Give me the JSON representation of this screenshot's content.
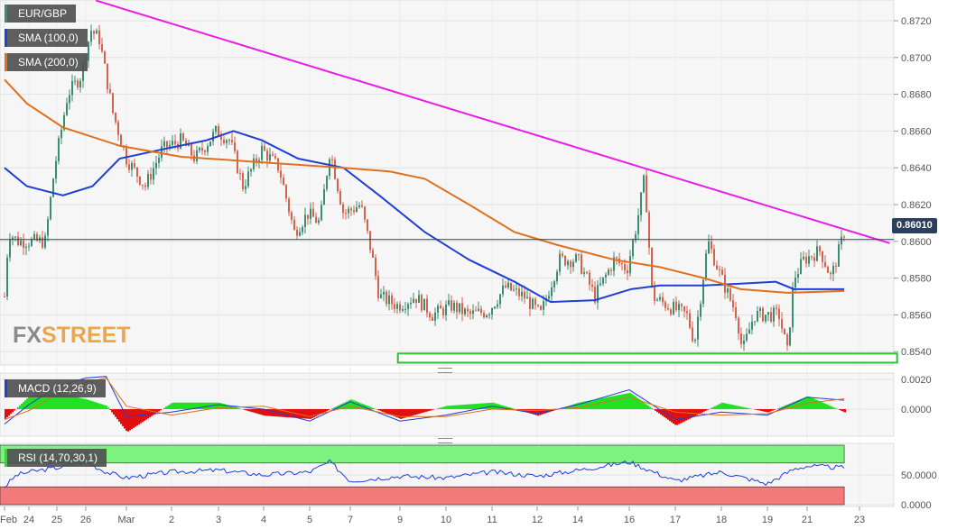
{
  "chart_data": [
    {
      "type": "candlestick",
      "symbol": "EUR/GBP",
      "ylim": [
        0.8531,
        0.8731
      ],
      "yticks": [
        "0.8720",
        "0.8700",
        "0.8680",
        "0.8660",
        "0.8640",
        "0.8620",
        "0.8600",
        "0.8580",
        "0.8560",
        "0.8540"
      ],
      "xticks": [
        "Feb",
        "24",
        "25",
        "26",
        "Mar",
        "2",
        "3",
        "4",
        "5",
        "7",
        "9",
        "10",
        "11",
        "12",
        "14",
        "16",
        "17",
        "18",
        "19",
        "21",
        "23"
      ],
      "last_price": "0.86010",
      "price_path": [
        [
          "Feb 00:00",
          0.857
        ],
        [
          "Feb 04:00",
          0.8605
        ],
        [
          "Feb 13:00",
          0.86
        ],
        [
          "24 14:00",
          0.86
        ],
        [
          "24 22:00",
          0.864
        ],
        [
          "25 09:00",
          0.868
        ],
        [
          "25 20:00",
          0.869
        ],
        [
          "26 03:00",
          0.8715
        ],
        [
          "26 08:00",
          0.871
        ],
        [
          "26 16:00",
          0.867
        ],
        [
          "Mar 00:00",
          0.8645
        ],
        [
          "Mar 10:00",
          0.863
        ],
        [
          "Mar 19:00",
          0.865
        ],
        [
          "2 05:00",
          0.8655
        ],
        [
          "2 12:00",
          0.8645
        ],
        [
          "2 23:00",
          0.866
        ],
        [
          "3 06:00",
          0.8655
        ],
        [
          "3 13:00",
          0.863
        ],
        [
          "3 23:00",
          0.865
        ],
        [
          "4 08:00",
          0.864
        ],
        [
          "4 16:00",
          0.8605
        ],
        [
          "4 23:00",
          0.8615
        ],
        [
          "5 06:00",
          0.861
        ],
        [
          "5 12:00",
          0.865
        ],
        [
          "5 20:00",
          0.8615
        ],
        [
          "7 05:00",
          0.862
        ],
        [
          "7 10:00",
          0.8595
        ],
        [
          "7 14:00",
          0.857
        ],
        [
          "7 23:00",
          0.8565
        ],
        [
          "9 08:00",
          0.857
        ],
        [
          "9 17:00",
          0.856
        ],
        [
          "10 03:00",
          0.8565
        ],
        [
          "10 12:00",
          0.856
        ],
        [
          "10 22:00",
          0.8562
        ],
        [
          "11 07:00",
          0.8575
        ],
        [
          "11 17:00",
          0.857
        ],
        [
          "12 02:00",
          0.856
        ],
        [
          "12 13:00",
          0.859
        ],
        [
          "14 00:00",
          0.859
        ],
        [
          "14 08:00",
          0.857
        ],
        [
          "14 17:00",
          0.859
        ],
        [
          "14 23:00",
          0.8585
        ],
        [
          "16 04:00",
          0.861
        ],
        [
          "16 08:00",
          0.8635
        ],
        [
          "16 12:00",
          0.857
        ],
        [
          "16 20:00",
          0.8565
        ],
        [
          "17 06:00",
          0.856
        ],
        [
          "17 10:00",
          0.8545
        ],
        [
          "17 17:00",
          0.86
        ],
        [
          "18 00:00",
          0.858
        ],
        [
          "18 08:00",
          0.856
        ],
        [
          "18 11:00",
          0.854
        ],
        [
          "18 17:00",
          0.856
        ],
        [
          "19 07:00",
          0.856
        ],
        [
          "19 12:00",
          0.854
        ],
        [
          "19 16:00",
          0.858
        ],
        [
          "19 22:00",
          0.859
        ],
        [
          "21 06:00",
          0.8595
        ],
        [
          "21 11:00",
          0.858
        ],
        [
          "21 17:00",
          0.8605
        ]
      ],
      "series": [
        {
          "name": "SMA (100,0)",
          "color": "#1f3fd6",
          "points": [
            [
              "Feb 00:00",
              0.864
            ],
            [
              "Feb 22:00",
              0.863
            ],
            [
              "25 05:00",
              0.8625
            ],
            [
              "26 04:00",
              0.863
            ],
            [
              "26 20:00",
              0.8645
            ],
            [
              "Mar 19:00",
              0.865
            ],
            [
              "2 18:00",
              0.8655
            ],
            [
              "3 08:00",
              0.866
            ],
            [
              "3 23:00",
              0.8655
            ],
            [
              "4 18:00",
              0.8645
            ],
            [
              "5 20:00",
              0.864
            ],
            [
              "7 14:00",
              0.8625
            ],
            [
              "9 13:00",
              0.8605
            ],
            [
              "10 12:00",
              0.859
            ],
            [
              "11 12:00",
              0.8578
            ],
            [
              "12 08:00",
              0.8567
            ],
            [
              "14 08:00",
              0.8568
            ],
            [
              "16 01:00",
              0.8574
            ],
            [
              "16 16:00",
              0.8576
            ],
            [
              "17 15:00",
              0.8576
            ],
            [
              "18 10:00",
              0.8577
            ],
            [
              "19 05:00",
              0.8578
            ],
            [
              "19 16:00",
              0.8574
            ],
            [
              "21 17:00",
              0.8574
            ]
          ]
        },
        {
          "name": "SMA (200,0)",
          "color": "#e0701e",
          "points": [
            [
              "Feb 00:00",
              0.8688
            ],
            [
              "Feb 22:00",
              0.8675
            ],
            [
              "25 05:00",
              0.8662
            ],
            [
              "26 20:00",
              0.8652
            ],
            [
              "2 05:00",
              0.8646
            ],
            [
              "3 23:00",
              0.8643
            ],
            [
              "5 20:00",
              0.864
            ],
            [
              "7 19:00",
              0.8638
            ],
            [
              "9 13:00",
              0.8634
            ],
            [
              "10 12:00",
              0.862
            ],
            [
              "11 12:00",
              0.8605
            ],
            [
              "12 12:00",
              0.8598
            ],
            [
              "14 17:00",
              0.859
            ],
            [
              "16 16:00",
              0.8586
            ],
            [
              "17 15:00",
              0.858
            ],
            [
              "18 10:00",
              0.8574
            ],
            [
              "19 12:00",
              0.8572
            ],
            [
              "21 17:00",
              0.8573
            ]
          ]
        }
      ],
      "trendline": {
        "color": "#e81ee8",
        "from": [
          "26 06:00",
          0.8731
        ],
        "to": [
          "23 16:00",
          0.8599
        ]
      },
      "support_zone": {
        "color": "#2fc12f",
        "from": "7 23:00",
        "to": "23 20:00",
        "low": 0.8535,
        "high": 0.8538
      },
      "colors": {
        "up": "#3b8c70",
        "down": "#d5634c",
        "price_line": "#2b3f5e"
      }
    },
    {
      "type": "line",
      "name": "MACD (12,26,9)",
      "ylim": [
        -0.0018,
        0.0024
      ],
      "yticks": [
        "0.0020",
        "0.0000"
      ],
      "macd": [
        [
          "Feb 00:00",
          -0.001
        ],
        [
          "24 00:00",
          0.0003
        ],
        [
          "25 00:00",
          0.0015
        ],
        [
          "26 00:00",
          0.0021
        ],
        [
          "26 12:00",
          0.0022
        ],
        [
          "Mar 00:00",
          -0.0005
        ],
        [
          "2 00:00",
          -0.0002
        ],
        [
          "3 00:00",
          0.0003
        ],
        [
          "4 00:00",
          0.0
        ],
        [
          "5 00:00",
          -0.0008
        ],
        [
          "7 00:00",
          0.0005
        ],
        [
          "9 00:00",
          -0.0008
        ],
        [
          "10 00:00",
          -0.0004
        ],
        [
          "11 00:00",
          0.0002
        ],
        [
          "12 00:00",
          -0.0003
        ],
        [
          "14 00:00",
          0.0003
        ],
        [
          "16 00:00",
          0.0013
        ],
        [
          "17 00:00",
          -0.0007
        ],
        [
          "18 00:00",
          -0.0002
        ],
        [
          "19 00:00",
          -0.0004
        ],
        [
          "21 00:00",
          0.0008
        ],
        [
          "21 17:00",
          0.0006
        ]
      ],
      "signal": [
        [
          "Feb 00:00",
          -0.0007
        ],
        [
          "24 00:00",
          -0.0001
        ],
        [
          "25 00:00",
          0.001
        ],
        [
          "26 00:00",
          0.0018
        ],
        [
          "26 12:00",
          0.0021
        ],
        [
          "Mar 00:00",
          0.0002
        ],
        [
          "2 00:00",
          -0.0004
        ],
        [
          "3 00:00",
          0.0001
        ],
        [
          "4 00:00",
          0.0002
        ],
        [
          "5 00:00",
          -0.0005
        ],
        [
          "7 00:00",
          0.0002
        ],
        [
          "9 00:00",
          -0.0005
        ],
        [
          "10 00:00",
          -0.0005
        ],
        [
          "11 00:00",
          0.0
        ],
        [
          "12 00:00",
          -0.0001
        ],
        [
          "14 00:00",
          0.0001
        ],
        [
          "16 00:00",
          0.0008
        ],
        [
          "17 00:00",
          -0.0002
        ],
        [
          "18 00:00",
          -0.0004
        ],
        [
          "19 00:00",
          -0.0003
        ],
        [
          "21 00:00",
          0.0004
        ],
        [
          "21 17:00",
          0.0007
        ]
      ],
      "colors": {
        "macd": "#1f3fd6",
        "signal": "#e0701e",
        "hist_pos": "#22e022",
        "hist_neg": "#e01010"
      }
    },
    {
      "type": "line",
      "name": "RSI (14,70,30,1)",
      "ylim": [
        0,
        100
      ],
      "yticks": [
        "50.0000",
        "0.0000"
      ],
      "overbought": 70,
      "oversold": 30,
      "rsi": [
        [
          "Feb 00:00",
          30
        ],
        [
          "Feb 12:00",
          50
        ],
        [
          "24 00:00",
          55
        ],
        [
          "25 00:00",
          62
        ],
        [
          "26 00:00",
          72
        ],
        [
          "26 12:00",
          55
        ],
        [
          "Mar 00:00",
          45
        ],
        [
          "2 00:00",
          55
        ],
        [
          "3 00:00",
          58
        ],
        [
          "4 00:00",
          50
        ],
        [
          "5 00:00",
          55
        ],
        [
          "5 12:00",
          72
        ],
        [
          "7 00:00",
          40
        ],
        [
          "9 00:00",
          48
        ],
        [
          "10 00:00",
          45
        ],
        [
          "11 00:00",
          55
        ],
        [
          "12 00:00",
          48
        ],
        [
          "14 00:00",
          58
        ],
        [
          "16 00:00",
          72
        ],
        [
          "17 00:00",
          40
        ],
        [
          "18 00:00",
          55
        ],
        [
          "19 00:00",
          35
        ],
        [
          "19 16:00",
          60
        ],
        [
          "21 00:00",
          65
        ],
        [
          "21 17:00",
          62
        ]
      ],
      "colors": {
        "line": "#1f3fd6",
        "overbought": "#7ef27e",
        "oversold": "#f47a7a"
      }
    }
  ],
  "legend": {
    "symbol": "EUR/GBP",
    "sma100": "SMA (100,0)",
    "sma200": "SMA (200,0)",
    "macd": "MACD (12,26,9)",
    "rsi": "RSI (14,70,30,1)"
  },
  "logo": {
    "fx": "FX",
    "street": "STREET"
  }
}
